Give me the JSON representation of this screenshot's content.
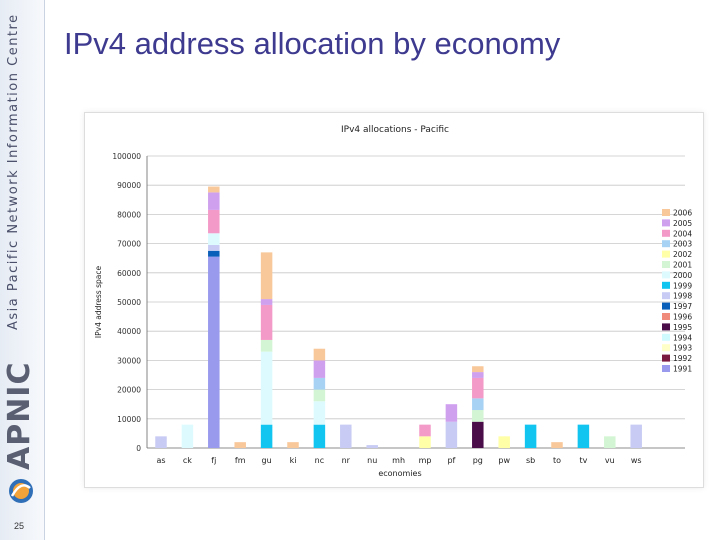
{
  "slide": {
    "title": "IPv4 address allocation by economy",
    "page_number": "25",
    "sidebar_text": "Asia Pacific Network Information Centre",
    "brand": "APNIC"
  },
  "colors": {
    "title": "#3d3a8f",
    "series": {
      "1991": "#9999ee",
      "1992": "#7a1a40",
      "1993": "#ffffc8",
      "1994": "#cffbff",
      "1995": "#4a0d4a",
      "1996": "#f08a7a",
      "1997": "#0a5fb8",
      "1998": "#c8ccf4",
      "1999": "#12c4f0",
      "2000": "#ddfbff",
      "2001": "#d3f5d3",
      "2002": "#ffffa8",
      "2003": "#a8d2f4",
      "2004": "#f49ac8",
      "2005": "#cfa0ee",
      "2006": "#f8c89a"
    }
  },
  "chart_data": {
    "type": "bar",
    "stacked": true,
    "title": "IPv4 allocations - Pacific",
    "xlabel": "economies",
    "ylabel": "IPv4 address space",
    "ylim": [
      0,
      100000
    ],
    "yticks": [
      0,
      10000,
      20000,
      30000,
      40000,
      50000,
      60000,
      70000,
      80000,
      90000,
      100000
    ],
    "grid": true,
    "legend_position": "right",
    "legend_order": [
      "2006",
      "2005",
      "2004",
      "2003",
      "2002",
      "2001",
      "2000",
      "1999",
      "1998",
      "1997",
      "1996",
      "1995",
      "1994",
      "1993",
      "1992",
      "1991"
    ],
    "categories": [
      "as",
      "ck",
      "fj",
      "fm",
      "gu",
      "ki",
      "nc",
      "nr",
      "nu",
      "mh",
      "mp",
      "pf",
      "pg",
      "pw",
      "sb",
      "to",
      "tv",
      "vu",
      "ws"
    ],
    "series": [
      {
        "name": "1991",
        "values": [
          0,
          0,
          65536,
          0,
          0,
          0,
          0,
          0,
          0,
          0,
          0,
          0,
          0,
          0,
          0,
          0,
          0,
          0,
          0
        ]
      },
      {
        "name": "1992",
        "values": [
          0,
          0,
          0,
          0,
          0,
          0,
          0,
          0,
          0,
          0,
          0,
          0,
          0,
          0,
          0,
          0,
          0,
          0,
          0
        ]
      },
      {
        "name": "1993",
        "values": [
          0,
          0,
          0,
          0,
          0,
          0,
          0,
          0,
          0,
          0,
          0,
          0,
          0,
          0,
          0,
          0,
          0,
          0,
          0
        ]
      },
      {
        "name": "1994",
        "values": [
          0,
          0,
          0,
          0,
          0,
          0,
          0,
          0,
          0,
          0,
          0,
          0,
          0,
          0,
          0,
          0,
          0,
          0,
          0
        ]
      },
      {
        "name": "1995",
        "values": [
          0,
          0,
          0,
          0,
          0,
          0,
          0,
          0,
          0,
          0,
          0,
          0,
          9000,
          0,
          0,
          0,
          0,
          0,
          0
        ]
      },
      {
        "name": "1996",
        "values": [
          0,
          0,
          0,
          0,
          0,
          0,
          0,
          0,
          0,
          0,
          0,
          0,
          0,
          0,
          0,
          0,
          0,
          0,
          0
        ]
      },
      {
        "name": "1997",
        "values": [
          0,
          0,
          2000,
          0,
          0,
          0,
          0,
          0,
          0,
          0,
          0,
          0,
          0,
          0,
          0,
          0,
          0,
          0,
          0
        ]
      },
      {
        "name": "1998",
        "values": [
          4000,
          0,
          2000,
          0,
          0,
          0,
          0,
          8000,
          1000,
          0,
          0,
          9000,
          0,
          0,
          0,
          0,
          0,
          0,
          8000
        ]
      },
      {
        "name": "1999",
        "values": [
          0,
          0,
          0,
          0,
          8000,
          0,
          8000,
          0,
          0,
          0,
          0,
          0,
          0,
          0,
          8000,
          0,
          8000,
          0,
          0
        ]
      },
      {
        "name": "2000",
        "values": [
          0,
          8000,
          4000,
          0,
          25000,
          0,
          8000,
          0,
          0,
          0,
          0,
          0,
          0,
          0,
          0,
          0,
          0,
          0,
          0
        ]
      },
      {
        "name": "2001",
        "values": [
          0,
          0,
          0,
          0,
          4000,
          0,
          4000,
          0,
          0,
          0,
          0,
          0,
          4000,
          0,
          0,
          0,
          0,
          4000,
          0
        ]
      },
      {
        "name": "2002",
        "values": [
          0,
          0,
          0,
          0,
          0,
          0,
          0,
          0,
          0,
          0,
          4000,
          0,
          0,
          4000,
          0,
          0,
          0,
          0,
          0
        ]
      },
      {
        "name": "2003",
        "values": [
          0,
          0,
          0,
          0,
          0,
          0,
          4000,
          0,
          0,
          0,
          0,
          0,
          4000,
          0,
          0,
          0,
          0,
          0,
          0
        ]
      },
      {
        "name": "2004",
        "values": [
          0,
          0,
          8000,
          0,
          12000,
          0,
          0,
          0,
          0,
          0,
          4000,
          0,
          7000,
          0,
          0,
          0,
          0,
          0,
          0
        ]
      },
      {
        "name": "2005",
        "values": [
          0,
          0,
          6000,
          0,
          2000,
          0,
          6000,
          0,
          0,
          0,
          0,
          6000,
          2000,
          0,
          0,
          0,
          0,
          0,
          0
        ]
      },
      {
        "name": "2006",
        "values": [
          0,
          0,
          2000,
          2000,
          16000,
          2000,
          4000,
          0,
          0,
          0,
          0,
          0,
          2000,
          0,
          0,
          2000,
          0,
          0,
          0
        ]
      }
    ]
  }
}
